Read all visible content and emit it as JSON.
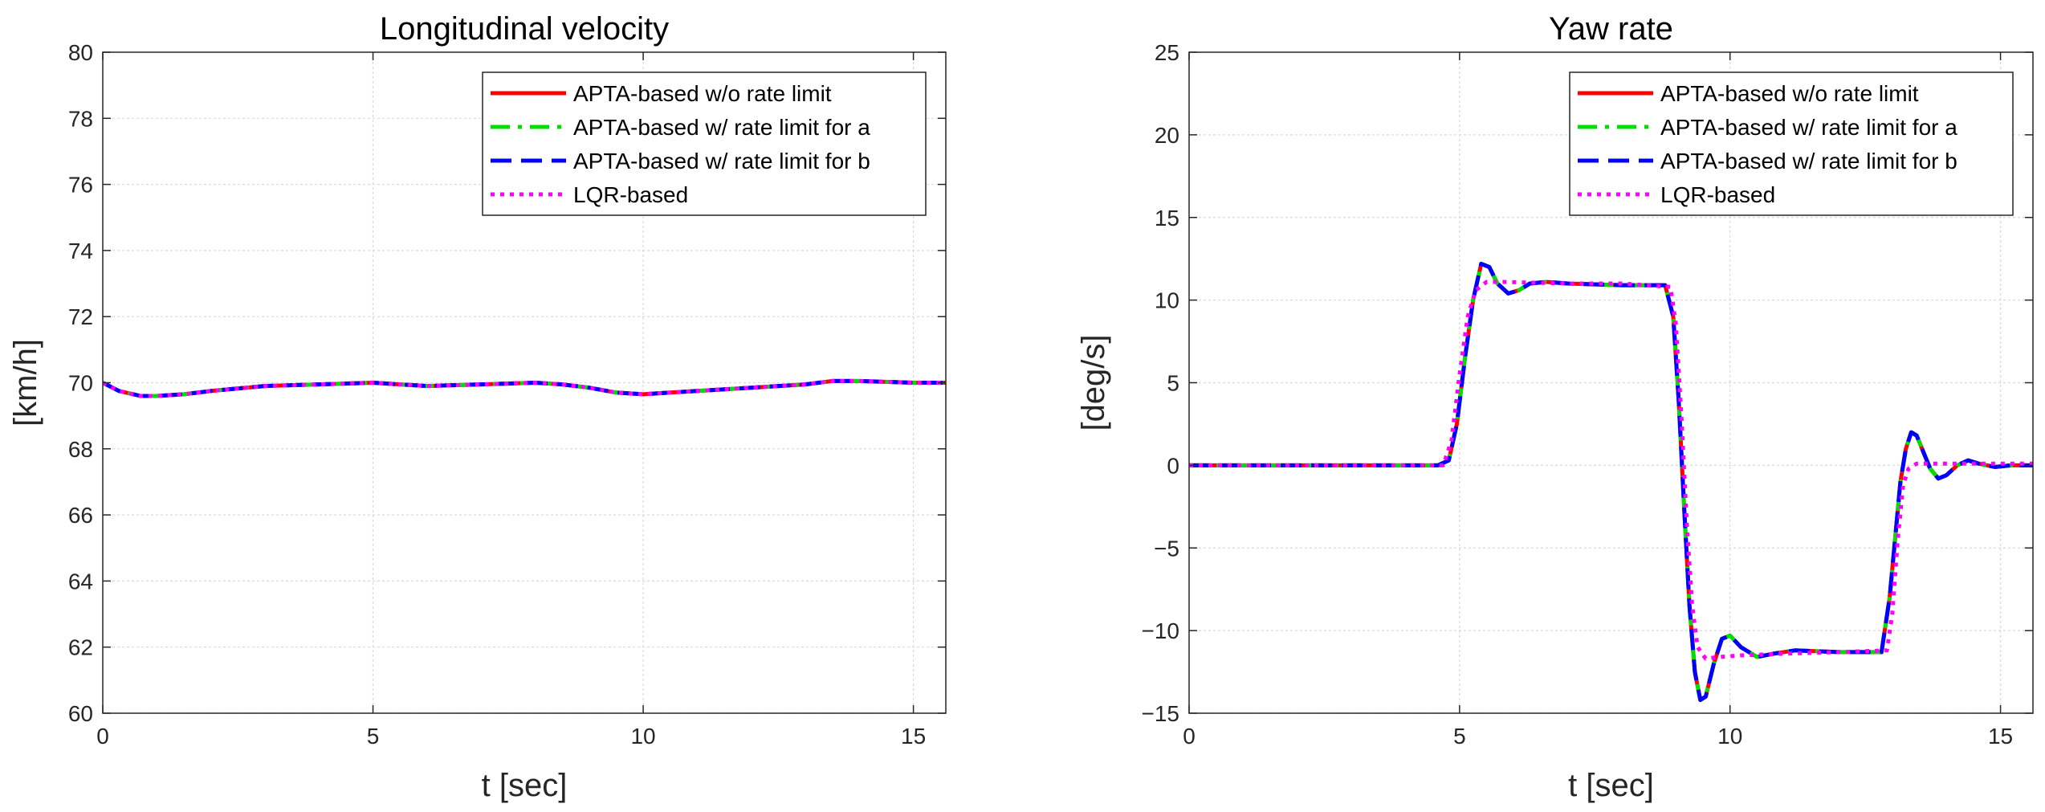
{
  "chart_data": [
    {
      "type": "line",
      "title": "Longitudinal velocity",
      "xlabel": "t [sec]",
      "ylabel": "[km/h]",
      "xlim": [
        0,
        15.6
      ],
      "ylim": [
        60,
        80
      ],
      "xticks": [
        0,
        5,
        10,
        15
      ],
      "yticks": [
        60,
        62,
        64,
        66,
        68,
        70,
        72,
        74,
        76,
        78,
        80
      ],
      "grid": true,
      "legend": "top-right",
      "series": [
        {
          "name": "APTA-based w/o rate limit",
          "color": "#ff0000",
          "style": "solid",
          "x": [
            0,
            0.3,
            0.7,
            1.0,
            1.5,
            2.0,
            3.0,
            4.0,
            5.0,
            5.5,
            6.0,
            7.0,
            8.0,
            8.5,
            9.0,
            9.5,
            10.0,
            10.5,
            11.0,
            12.0,
            13.0,
            13.5,
            14.0,
            15.0,
            15.6
          ],
          "y": [
            70.0,
            69.75,
            69.6,
            69.6,
            69.65,
            69.75,
            69.9,
            69.95,
            70.0,
            69.95,
            69.9,
            69.95,
            70.0,
            69.95,
            69.85,
            69.7,
            69.65,
            69.7,
            69.75,
            69.85,
            69.95,
            70.05,
            70.05,
            70.0,
            70.0
          ]
        },
        {
          "name": "APTA-based w/ rate limit for a",
          "color": "#00e000",
          "style": "dashdot",
          "x": [
            0,
            0.3,
            0.7,
            1.0,
            1.5,
            2.0,
            3.0,
            4.0,
            5.0,
            5.5,
            6.0,
            7.0,
            8.0,
            8.5,
            9.0,
            9.5,
            10.0,
            10.5,
            11.0,
            12.0,
            13.0,
            13.5,
            14.0,
            15.0,
            15.6
          ],
          "y": [
            70.0,
            69.75,
            69.6,
            69.6,
            69.65,
            69.75,
            69.9,
            69.95,
            70.0,
            69.95,
            69.9,
            69.95,
            70.0,
            69.95,
            69.85,
            69.7,
            69.65,
            69.7,
            69.75,
            69.85,
            69.95,
            70.05,
            70.05,
            70.0,
            70.0
          ]
        },
        {
          "name": "APTA-based w/ rate limit for b",
          "color": "#0000ff",
          "style": "dashed",
          "x": [
            0,
            0.3,
            0.7,
            1.0,
            1.5,
            2.0,
            3.0,
            4.0,
            5.0,
            5.5,
            6.0,
            7.0,
            8.0,
            8.5,
            9.0,
            9.5,
            10.0,
            10.5,
            11.0,
            12.0,
            13.0,
            13.5,
            14.0,
            15.0,
            15.6
          ],
          "y": [
            70.0,
            69.75,
            69.6,
            69.6,
            69.65,
            69.75,
            69.9,
            69.95,
            70.0,
            69.95,
            69.9,
            69.95,
            70.0,
            69.95,
            69.85,
            69.7,
            69.65,
            69.7,
            69.75,
            69.85,
            69.95,
            70.05,
            70.05,
            70.0,
            70.0
          ]
        },
        {
          "name": "LQR-based",
          "color": "#ff00ff",
          "style": "dotted",
          "x": [
            0,
            0.3,
            0.7,
            1.0,
            1.5,
            2.0,
            3.0,
            4.0,
            5.0,
            5.5,
            6.0,
            7.0,
            8.0,
            8.5,
            9.0,
            9.5,
            10.0,
            10.5,
            11.0,
            12.0,
            13.0,
            13.5,
            14.0,
            15.0,
            15.6
          ],
          "y": [
            70.0,
            69.75,
            69.6,
            69.6,
            69.65,
            69.75,
            69.9,
            69.95,
            70.0,
            69.95,
            69.9,
            69.95,
            70.0,
            69.95,
            69.85,
            69.7,
            69.65,
            69.7,
            69.75,
            69.85,
            69.95,
            70.05,
            70.05,
            70.0,
            70.0
          ]
        }
      ]
    },
    {
      "type": "line",
      "title": "Yaw rate",
      "xlabel": "t [sec]",
      "ylabel": "[deg/s]",
      "xlim": [
        0,
        15.6
      ],
      "ylim": [
        -15,
        25
      ],
      "xticks": [
        0,
        5,
        10,
        15
      ],
      "yticks": [
        -15,
        -10,
        -5,
        0,
        5,
        10,
        15,
        20,
        25
      ],
      "ytick_labels": [
        "−15",
        "−10",
        "−5",
        "0",
        "5",
        "10",
        "15",
        "20",
        "25"
      ],
      "grid": true,
      "legend": "top-right",
      "series": [
        {
          "name": "APTA-based w/o rate limit",
          "color": "#ff0000",
          "style": "solid",
          "x": [
            0,
            4.6,
            4.8,
            4.95,
            5.1,
            5.25,
            5.4,
            5.55,
            5.7,
            5.9,
            6.1,
            6.3,
            6.6,
            7.0,
            8.0,
            8.8,
            8.95,
            9.05,
            9.15,
            9.25,
            9.35,
            9.45,
            9.55,
            9.7,
            9.85,
            10.0,
            10.2,
            10.5,
            10.8,
            11.2,
            12.0,
            12.8,
            12.95,
            13.05,
            13.15,
            13.25,
            13.35,
            13.45,
            13.55,
            13.7,
            13.85,
            14.0,
            14.2,
            14.4,
            14.6,
            14.9,
            15.2,
            15.6
          ],
          "y": [
            0,
            0,
            0.3,
            2.5,
            6.5,
            10.0,
            12.2,
            12.0,
            11.0,
            10.4,
            10.6,
            11.0,
            11.1,
            11.0,
            10.9,
            10.9,
            9.0,
            4.0,
            -2.5,
            -8.5,
            -12.5,
            -14.2,
            -14.0,
            -12.0,
            -10.5,
            -10.3,
            -11.0,
            -11.6,
            -11.4,
            -11.2,
            -11.3,
            -11.3,
            -8.0,
            -4.5,
            -1.0,
            1.0,
            2.0,
            1.8,
            1.0,
            -0.2,
            -0.8,
            -0.6,
            0.0,
            0.3,
            0.1,
            -0.1,
            0.0,
            0.0
          ]
        },
        {
          "name": "APTA-based w/ rate limit for a",
          "color": "#00e000",
          "style": "dashdot",
          "x": [
            0,
            4.6,
            4.8,
            4.95,
            5.1,
            5.25,
            5.4,
            5.55,
            5.7,
            5.9,
            6.1,
            6.3,
            6.6,
            7.0,
            8.0,
            8.8,
            8.95,
            9.05,
            9.15,
            9.25,
            9.35,
            9.45,
            9.55,
            9.7,
            9.85,
            10.0,
            10.2,
            10.5,
            10.8,
            11.2,
            12.0,
            12.8,
            12.95,
            13.05,
            13.15,
            13.25,
            13.35,
            13.45,
            13.55,
            13.7,
            13.85,
            14.0,
            14.2,
            14.4,
            14.6,
            14.9,
            15.2,
            15.6
          ],
          "y": [
            0,
            0,
            0.3,
            2.5,
            6.5,
            10.0,
            12.2,
            12.0,
            11.0,
            10.4,
            10.6,
            11.0,
            11.1,
            11.0,
            10.9,
            10.9,
            9.0,
            4.0,
            -2.5,
            -8.5,
            -12.5,
            -14.2,
            -14.0,
            -12.0,
            -10.5,
            -10.3,
            -11.0,
            -11.6,
            -11.4,
            -11.2,
            -11.3,
            -11.3,
            -8.0,
            -4.5,
            -1.0,
            1.0,
            2.0,
            1.8,
            1.0,
            -0.2,
            -0.8,
            -0.6,
            0.0,
            0.3,
            0.1,
            -0.1,
            0.0,
            0.0
          ]
        },
        {
          "name": "APTA-based w/ rate limit for b",
          "color": "#0000ff",
          "style": "dashed",
          "x": [
            0,
            4.6,
            4.8,
            4.95,
            5.1,
            5.25,
            5.4,
            5.55,
            5.7,
            5.9,
            6.1,
            6.3,
            6.6,
            7.0,
            8.0,
            8.8,
            8.95,
            9.05,
            9.15,
            9.25,
            9.35,
            9.45,
            9.55,
            9.7,
            9.85,
            10.0,
            10.2,
            10.5,
            10.8,
            11.2,
            12.0,
            12.8,
            12.95,
            13.05,
            13.15,
            13.25,
            13.35,
            13.45,
            13.55,
            13.7,
            13.85,
            14.0,
            14.2,
            14.4,
            14.6,
            14.9,
            15.2,
            15.6
          ],
          "y": [
            0,
            0,
            0.3,
            2.5,
            6.5,
            10.0,
            12.2,
            12.0,
            11.0,
            10.4,
            10.6,
            11.0,
            11.1,
            11.0,
            10.9,
            10.9,
            9.0,
            4.0,
            -2.5,
            -8.5,
            -12.5,
            -14.2,
            -14.0,
            -12.0,
            -10.5,
            -10.3,
            -11.0,
            -11.6,
            -11.4,
            -11.2,
            -11.3,
            -11.3,
            -8.0,
            -4.5,
            -1.0,
            1.0,
            2.0,
            1.8,
            1.0,
            -0.2,
            -0.8,
            -0.6,
            0.0,
            0.3,
            0.1,
            -0.1,
            0.0,
            0.0
          ]
        },
        {
          "name": "LQR-based",
          "color": "#ff00ff",
          "style": "dotted",
          "x": [
            0,
            4.7,
            4.85,
            5.0,
            5.15,
            5.3,
            5.5,
            5.8,
            7.0,
            8.0,
            8.9,
            9.0,
            9.1,
            9.2,
            9.3,
            9.4,
            9.55,
            9.8,
            10.2,
            11.0,
            12.0,
            12.9,
            13.0,
            13.1,
            13.2,
            13.3,
            13.45,
            13.7,
            14.0,
            15.6
          ],
          "y": [
            0,
            0,
            1.5,
            5.5,
            9.0,
            10.6,
            11.1,
            11.1,
            11.0,
            11.0,
            10.8,
            8.5,
            3.0,
            -3.5,
            -8.5,
            -11.0,
            -11.7,
            -11.6,
            -11.5,
            -11.4,
            -11.3,
            -11.2,
            -9.0,
            -4.5,
            -1.2,
            -0.2,
            0.1,
            0.1,
            0.1,
            0.1
          ]
        }
      ]
    }
  ]
}
